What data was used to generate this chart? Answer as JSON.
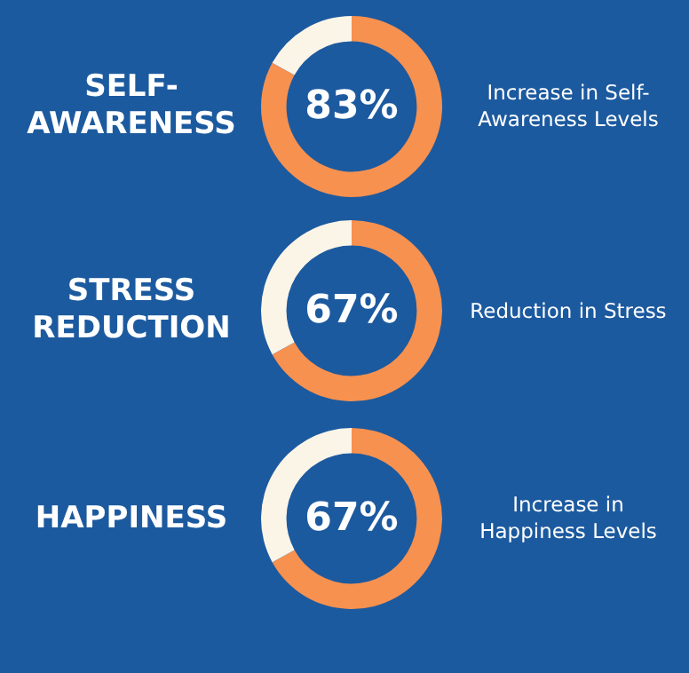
{
  "chart_data": [
    {
      "type": "donut",
      "title": "SELF-AWARENESS",
      "categories": [
        null,
        null
      ],
      "values": [
        83,
        17
      ],
      "colors": [
        "#f7914f",
        "#fbf5e8"
      ],
      "value_labels": [
        "83%",
        null
      ],
      "annotations": [
        "Increase in Self-Awareness Levels"
      ]
    },
    {
      "type": "donut",
      "title": "STRESS REDUCTION",
      "categories": [
        null,
        null
      ],
      "values": [
        67,
        33
      ],
      "colors": [
        "#f7914f",
        "#fbf5e8"
      ],
      "value_labels": [
        "67%",
        null
      ],
      "annotations": [
        "Reduction in Stress"
      ]
    },
    {
      "type": "donut",
      "title": "HAPPINESS",
      "categories": [
        null,
        null
      ],
      "values": [
        67,
        33
      ],
      "colors": [
        "#f7914f",
        "#fbf5e8"
      ],
      "value_labels": [
        "67%",
        null
      ],
      "annotations": [
        "Increase in Happiness Levels"
      ]
    }
  ]
}
